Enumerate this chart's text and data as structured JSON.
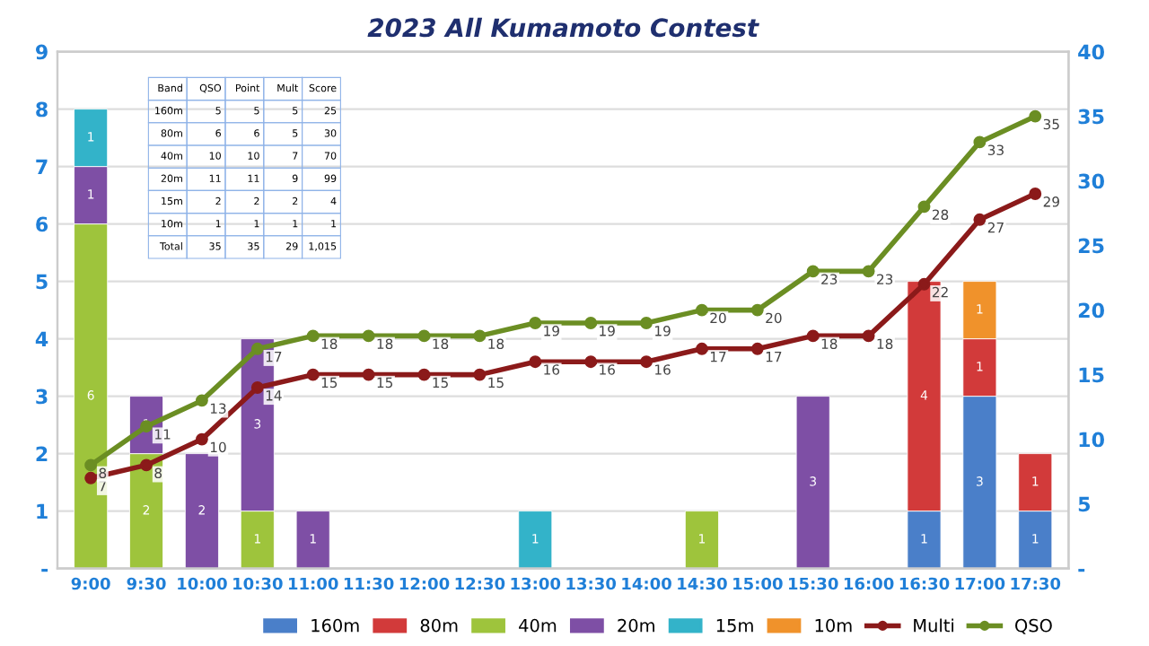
{
  "chart_data": {
    "type": "bar",
    "title": "2023 All Kumamoto Contest",
    "stacked": true,
    "categories": [
      "9:00",
      "9:30",
      "10:00",
      "10:30",
      "11:00",
      "11:30",
      "12:00",
      "12:30",
      "13:00",
      "13:30",
      "14:00",
      "14:30",
      "15:00",
      "15:30",
      "16:00",
      "16:30",
      "17:00",
      "17:30"
    ],
    "series": [
      {
        "name": "160m",
        "color": "#4a7fc9",
        "values": [
          null,
          null,
          null,
          null,
          null,
          null,
          null,
          null,
          null,
          null,
          null,
          null,
          null,
          null,
          null,
          1,
          3,
          1
        ]
      },
      {
        "name": "80m",
        "color": "#d23a3a",
        "values": [
          null,
          null,
          null,
          null,
          null,
          null,
          null,
          null,
          null,
          null,
          null,
          null,
          null,
          null,
          null,
          4,
          1,
          1
        ]
      },
      {
        "name": "40m",
        "color": "#9ec43c",
        "values": [
          6,
          2,
          null,
          1,
          null,
          null,
          null,
          null,
          null,
          null,
          null,
          1,
          null,
          null,
          null,
          null,
          null,
          null
        ]
      },
      {
        "name": "20m",
        "color": "#7e4fa5",
        "values": [
          1,
          1,
          2,
          3,
          1,
          null,
          null,
          null,
          null,
          null,
          null,
          null,
          null,
          3,
          null,
          null,
          null,
          null
        ]
      },
      {
        "name": "15m",
        "color": "#33b3c9",
        "values": [
          1,
          null,
          null,
          null,
          null,
          null,
          null,
          null,
          1,
          null,
          null,
          null,
          null,
          null,
          null,
          null,
          null,
          null
        ]
      },
      {
        "name": "10m",
        "color": "#f0922b",
        "values": [
          null,
          null,
          null,
          null,
          null,
          null,
          null,
          null,
          null,
          null,
          null,
          null,
          null,
          null,
          null,
          null,
          1,
          null
        ]
      },
      {
        "name": "Multi",
        "type": "line",
        "axis": "y2",
        "color": "#8b1a1a",
        "values": [
          7,
          8,
          10,
          14,
          15,
          15,
          15,
          15,
          16,
          16,
          16,
          17,
          17,
          18,
          18,
          22,
          27,
          29
        ]
      },
      {
        "name": "QSO",
        "type": "line",
        "axis": "y2",
        "color": "#6b8e23",
        "values": [
          8,
          11,
          13,
          17,
          18,
          18,
          18,
          18,
          19,
          19,
          19,
          20,
          20,
          23,
          23,
          28,
          33,
          35
        ]
      }
    ],
    "ylim": [
      0,
      9
    ],
    "yticks": [
      {
        "value": 0,
        "label": "-"
      },
      1,
      2,
      3,
      4,
      5,
      6,
      7,
      8,
      9
    ],
    "y2lim": [
      0,
      40
    ],
    "y2ticks": [
      {
        "value": 0,
        "label": "-"
      },
      5,
      10,
      15,
      20,
      25,
      30,
      35,
      40
    ],
    "grid": "y",
    "legend": "bottom",
    "marker": "circle",
    "line_style": "solid",
    "data_labels": true,
    "annotations": [
      "Band",
      "QSO",
      "Point",
      "Mult",
      "Score",
      "160m",
      "5",
      "5",
      "5",
      "25",
      "80m",
      "6",
      "6",
      "5",
      "30",
      "40m",
      "10",
      "10",
      "7",
      "70",
      "20m",
      "11",
      "11",
      "9",
      "99",
      "15m",
      "2",
      "2",
      "2",
      "4",
      "10m",
      "1",
      "1",
      "1",
      "1",
      "Total",
      "35",
      "35",
      "29",
      "1,015"
    ]
  }
}
